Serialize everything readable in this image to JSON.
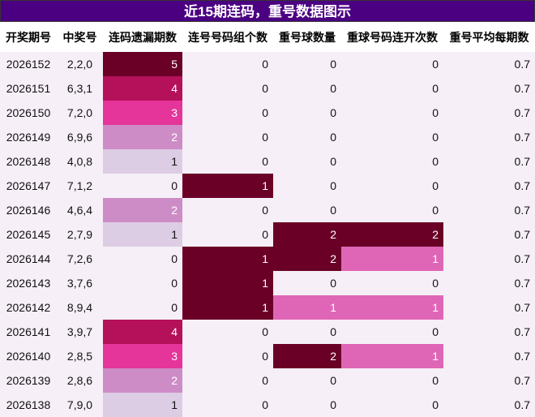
{
  "title": "近15期连码，重号数据图示",
  "table": {
    "header": [
      "开奖期号",
      "中奖号",
      "连码遗漏期数",
      "连号号码组个数",
      "重号球数量",
      "重球号码连开次数",
      "重号平均每期数"
    ],
    "rows": [
      [
        "2026152",
        "2,2,0",
        5,
        0,
        0,
        0,
        0.7
      ],
      [
        "2026151",
        "6,3,1",
        4,
        0,
        0,
        0,
        0.7
      ],
      [
        "2026150",
        "7,2,0",
        3,
        0,
        0,
        0,
        0.7
      ],
      [
        "2026149",
        "6,9,6",
        2,
        0,
        0,
        0,
        0.7
      ],
      [
        "2026148",
        "4,0,8",
        1,
        0,
        0,
        0,
        0.7
      ],
      [
        "2026147",
        "7,1,2",
        0,
        1,
        0,
        0,
        0.7
      ],
      [
        "2026146",
        "4,6,4",
        2,
        0,
        0,
        0,
        0.7
      ],
      [
        "2026145",
        "2,7,9",
        1,
        0,
        2,
        2,
        0.7
      ],
      [
        "2026144",
        "7,2,6",
        0,
        1,
        2,
        1,
        0.7
      ],
      [
        "2026143",
        "3,7,6",
        0,
        1,
        0,
        0,
        0.7
      ],
      [
        "2026142",
        "8,9,4",
        0,
        1,
        1,
        1,
        0.7
      ],
      [
        "2026141",
        "3,9,7",
        4,
        0,
        0,
        0,
        0.7
      ],
      [
        "2026140",
        "2,8,5",
        3,
        0,
        2,
        1,
        0.7
      ],
      [
        "2026139",
        "2,8,6",
        2,
        0,
        0,
        0,
        0.7
      ],
      [
        "2026138",
        "7,9,0",
        1,
        0,
        0,
        0,
        0.7
      ]
    ]
  }
}
